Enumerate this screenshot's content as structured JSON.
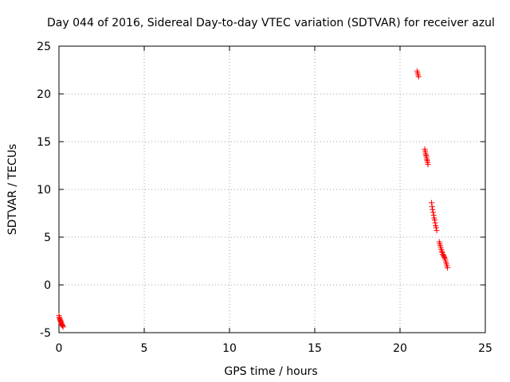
{
  "chart_data": {
    "type": "scatter",
    "title": "Day 044 of 2016, Sidereal Day-to-day VTEC variation (SDTVAR) for receiver azul",
    "xlabel": "GPS time / hours",
    "ylabel": "SDTVAR / TECUs",
    "xlim": [
      0,
      25
    ],
    "ylim": [
      -5,
      25
    ],
    "xticks": [
      0,
      5,
      10,
      15,
      20,
      25
    ],
    "yticks": [
      -5,
      0,
      5,
      10,
      15,
      20,
      25
    ],
    "grid": true,
    "marker": "plus",
    "series": [
      {
        "name": "SDTVAR",
        "color": "#ff0000",
        "x": [
          0.0,
          0.02,
          0.04,
          0.06,
          0.08,
          0.1,
          0.12,
          0.14,
          0.16,
          0.18,
          0.2,
          0.22,
          0.24,
          21.0,
          21.03,
          21.06,
          21.09,
          21.45,
          21.48,
          21.5,
          21.52,
          21.54,
          21.56,
          21.58,
          21.6,
          21.62,
          21.64,
          21.85,
          21.88,
          21.91,
          21.94,
          21.97,
          22.0,
          22.03,
          22.06,
          22.09,
          22.12,
          22.15,
          22.3,
          22.33,
          22.36,
          22.39,
          22.42,
          22.45,
          22.48,
          22.51,
          22.54,
          22.57,
          22.6,
          22.63,
          22.66,
          22.69,
          22.72,
          22.75,
          22.78
        ],
        "y": [
          -3.2,
          -3.4,
          -3.5,
          -3.6,
          -3.7,
          -3.8,
          -3.9,
          -4.0,
          -4.1,
          -4.2,
          -4.2,
          -4.3,
          -4.4,
          22.4,
          22.2,
          22.0,
          21.8,
          14.2,
          14.0,
          13.8,
          13.6,
          13.5,
          13.3,
          13.1,
          13.0,
          12.8,
          12.6,
          8.6,
          8.2,
          7.9,
          7.6,
          7.3,
          7.0,
          6.8,
          6.5,
          6.2,
          6.0,
          5.7,
          4.5,
          4.3,
          4.1,
          3.9,
          3.7,
          3.5,
          3.4,
          3.2,
          3.1,
          3.0,
          2.9,
          2.8,
          2.6,
          2.4,
          2.2,
          2.0,
          1.8
        ]
      }
    ]
  }
}
